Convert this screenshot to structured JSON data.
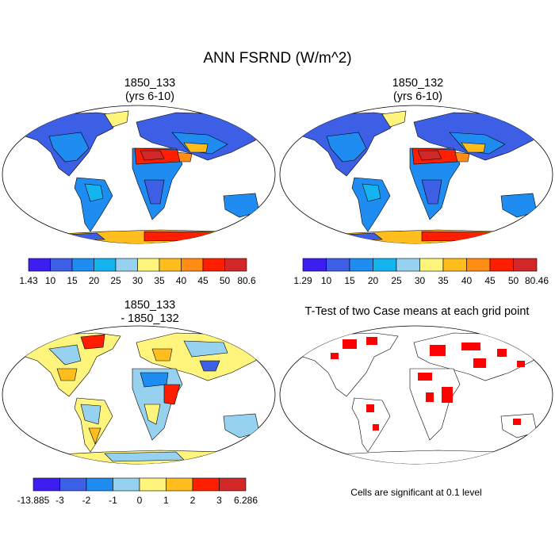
{
  "title": "ANN FSRND (W/m^2)",
  "panels": [
    {
      "line1": "1850_133",
      "line2": "(yrs 6-10)"
    },
    {
      "line1": "1850_132",
      "line2": "(yrs 6-10)"
    },
    {
      "line1": "1850_133",
      "line2": "- 1850_132"
    },
    {
      "line1": "T-Test of two Case means at each grid point",
      "line2": ""
    }
  ],
  "colorbars": [
    {
      "labels": [
        "1.43",
        "10",
        "15",
        "20",
        "25",
        "30",
        "35",
        "40",
        "45",
        "50",
        "80.6"
      ],
      "colors": [
        "#3c1ef0",
        "#3c5fe6",
        "#1e8cf0",
        "#14b4f0",
        "#96d2f0",
        "#fff57d",
        "#ffbe1e",
        "#ff8c14",
        "#ff1e00",
        "#d22828"
      ]
    },
    {
      "labels": [
        "1.29",
        "10",
        "15",
        "20",
        "25",
        "30",
        "35",
        "40",
        "45",
        "50",
        "80.46"
      ],
      "colors": [
        "#3c1ef0",
        "#3c5fe6",
        "#1e8cf0",
        "#14b4f0",
        "#96d2f0",
        "#fff57d",
        "#ffbe1e",
        "#ff8c14",
        "#ff1e00",
        "#d22828"
      ]
    },
    {
      "labels": [
        "-13.885",
        "-3",
        "-2",
        "-1",
        "0",
        "1",
        "2",
        "3",
        "6.286"
      ],
      "colors": [
        "#3c1ef0",
        "#3c5fe6",
        "#1e8cf0",
        "#96d2f0",
        "#fff57d",
        "#ffbe1e",
        "#ff1e00",
        "#d22828"
      ]
    }
  ],
  "note": "Cells are significant at 0.1 level"
}
